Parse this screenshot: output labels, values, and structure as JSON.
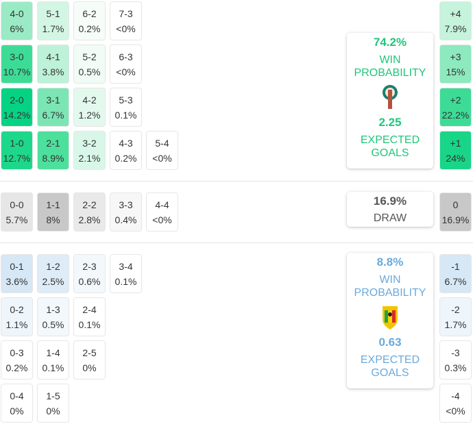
{
  "home": {
    "win_pct": "74.2%",
    "win_label_1": "WIN",
    "win_label_2": "PROBABILITY",
    "xg": "2.25",
    "xg_label_1": "EXPECTED",
    "xg_label_2": "GOALS",
    "color": "#1ec67a"
  },
  "draw": {
    "pct": "16.9%",
    "label": "DRAW",
    "color": "#555555"
  },
  "away": {
    "win_pct": "8.8%",
    "win_label_1": "WIN",
    "win_label_2": "PROBABILITY",
    "xg": "0.63",
    "xg_label_1": "EXPECTED",
    "xg_label_2": "GOALS",
    "color": "#6aaadb"
  },
  "home_rows": [
    [
      {
        "l": "4-0",
        "p": "6%",
        "bg": "#9aebc5"
      },
      {
        "l": "5-1",
        "p": "1.7%",
        "bg": "#d3f6e4"
      },
      {
        "l": "6-2",
        "p": "0.2%",
        "bg": "#f6fdf9"
      },
      {
        "l": "7-3",
        "p": "<0%",
        "bg": "#ffffff"
      }
    ],
    [
      {
        "l": "3-0",
        "p": "10.7%",
        "bg": "#3ddc96"
      },
      {
        "l": "4-1",
        "p": "3.8%",
        "bg": "#bdf2d8"
      },
      {
        "l": "5-2",
        "p": "0.5%",
        "bg": "#f1fcf6"
      },
      {
        "l": "6-3",
        "p": "<0%",
        "bg": "#ffffff"
      }
    ],
    [
      {
        "l": "2-0",
        "p": "14.2%",
        "bg": "#05d383"
      },
      {
        "l": "3-1",
        "p": "6.7%",
        "bg": "#7be6b4"
      },
      {
        "l": "4-2",
        "p": "1.2%",
        "bg": "#e4f9ee"
      },
      {
        "l": "5-3",
        "p": "0.1%",
        "bg": "#ffffff"
      }
    ],
    [
      {
        "l": "1-0",
        "p": "12.7%",
        "bg": "#1dd88a"
      },
      {
        "l": "2-1",
        "p": "8.9%",
        "bg": "#4ddf9c"
      },
      {
        "l": "3-2",
        "p": "2.1%",
        "bg": "#d8f7e8"
      },
      {
        "l": "4-3",
        "p": "0.2%",
        "bg": "#ffffff"
      },
      {
        "l": "5-4",
        "p": "<0%",
        "bg": "#ffffff"
      }
    ]
  ],
  "draw_row": [
    {
      "l": "0-0",
      "p": "5.7%",
      "bg": "#e6e6e6"
    },
    {
      "l": "1-1",
      "p": "8%",
      "bg": "#c8c8c8"
    },
    {
      "l": "2-2",
      "p": "2.8%",
      "bg": "#e9e9e9"
    },
    {
      "l": "3-3",
      "p": "0.4%",
      "bg": "#f7f7f7"
    },
    {
      "l": "4-4",
      "p": "<0%",
      "bg": "#ffffff"
    }
  ],
  "away_rows": [
    [
      {
        "l": "0-1",
        "p": "3.6%",
        "bg": "#d6e7f5"
      },
      {
        "l": "1-2",
        "p": "2.5%",
        "bg": "#deecf7"
      },
      {
        "l": "2-3",
        "p": "0.6%",
        "bg": "#f3f8fc"
      },
      {
        "l": "3-4",
        "p": "0.1%",
        "bg": "#ffffff"
      }
    ],
    [
      {
        "l": "0-2",
        "p": "1.1%",
        "bg": "#eef5fb"
      },
      {
        "l": "1-3",
        "p": "0.5%",
        "bg": "#f3f8fc"
      },
      {
        "l": "2-4",
        "p": "0.1%",
        "bg": "#ffffff"
      }
    ],
    [
      {
        "l": "0-3",
        "p": "0.2%",
        "bg": "#ffffff"
      },
      {
        "l": "1-4",
        "p": "0.1%",
        "bg": "#ffffff"
      },
      {
        "l": "2-5",
        "p": "0%",
        "bg": "#ffffff"
      }
    ],
    [
      {
        "l": "0-4",
        "p": "0%",
        "bg": "#ffffff"
      },
      {
        "l": "1-5",
        "p": "0%",
        "bg": "#ffffff"
      }
    ]
  ],
  "margins": [
    {
      "l": "+4",
      "p": "7.9%",
      "bg": "#c5f3dc"
    },
    {
      "l": "+3",
      "p": "15%",
      "bg": "#8de9be"
    },
    {
      "l": "+2",
      "p": "22.2%",
      "bg": "#3ddc96"
    },
    {
      "l": "+1",
      "p": "24%",
      "bg": "#18d587"
    },
    {
      "l": "0",
      "p": "16.9%",
      "bg": "#c8c8c8"
    },
    {
      "l": "-1",
      "p": "6.7%",
      "bg": "#d6e7f5"
    },
    {
      "l": "-2",
      "p": "1.7%",
      "bg": "#eef5fb"
    },
    {
      "l": "-3",
      "p": "0.3%",
      "bg": "#ffffff"
    },
    {
      "l": "-4",
      "p": "<0%",
      "bg": "#ffffff"
    }
  ]
}
